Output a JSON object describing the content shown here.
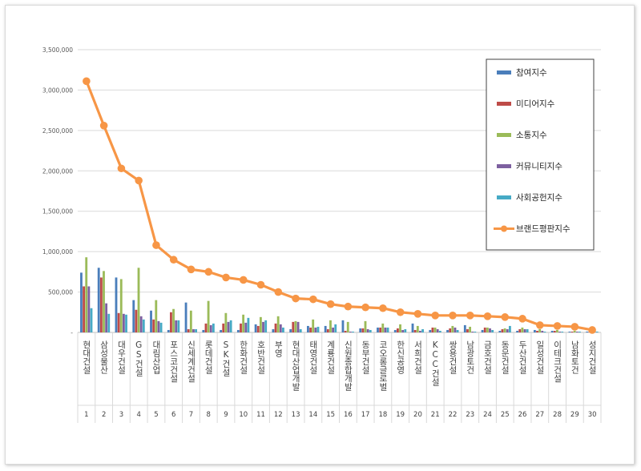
{
  "chart_data": {
    "type": "bar",
    "title": "",
    "xlabel": "",
    "ylabel": "",
    "ylim": [
      0,
      3500000
    ],
    "yticks": [
      0,
      500000,
      1000000,
      1500000,
      2000000,
      2500000,
      3000000,
      3500000
    ],
    "ytick_labels": [
      "-",
      "500,000",
      "1,000,000",
      "1,500,000",
      "2,000,000",
      "2,500,000",
      "3,000,000",
      "3,500,000"
    ],
    "grid": true,
    "legend_position": "top-right",
    "categories": [
      "현대건설",
      "삼성물산",
      "대우건설",
      "GS건설",
      "대림산업",
      "포스코건설",
      "신세계건설",
      "롯데건설",
      "SK건설",
      "한화건설",
      "호반건설",
      "부영",
      "현대산업개발",
      "태영건설",
      "계룡건설",
      "신원종합개발",
      "동부건설",
      "코오롱글로벌",
      "한신공영",
      "서희건설",
      "KCC건설",
      "쌍용건설",
      "남광토건",
      "금호건설",
      "동문건설",
      "두산건설",
      "일성건설",
      "이테크건설",
      "남화토건",
      "성지건설"
    ],
    "ranks": [
      "1",
      "2",
      "3",
      "4",
      "5",
      "6",
      "7",
      "8",
      "9",
      "10",
      "11",
      "12",
      "13",
      "14",
      "15",
      "16",
      "17",
      "18",
      "19",
      "20",
      "21",
      "22",
      "23",
      "24",
      "25",
      "26",
      "27",
      "28",
      "29",
      "30"
    ],
    "series": [
      {
        "name": "참여지수",
        "kind": "bar",
        "color": "#4a7ebb",
        "values": [
          740000,
          800000,
          680000,
          400000,
          270000,
          30000,
          370000,
          30000,
          30000,
          30000,
          100000,
          40000,
          40000,
          80000,
          80000,
          150000,
          50000,
          60000,
          30000,
          110000,
          30000,
          30000,
          90000,
          30000,
          20000,
          20000,
          30000,
          20000,
          10000,
          10000
        ]
      },
      {
        "name": "미디어지수",
        "kind": "bar",
        "color": "#be4b48",
        "values": [
          570000,
          680000,
          240000,
          280000,
          160000,
          250000,
          40000,
          110000,
          110000,
          110000,
          80000,
          110000,
          130000,
          60000,
          40000,
          20000,
          50000,
          60000,
          50000,
          30000,
          60000,
          50000,
          40000,
          60000,
          40000,
          40000,
          20000,
          20000,
          10000,
          10000
        ]
      },
      {
        "name": "소통지수",
        "kind": "bar",
        "color": "#9bbb59",
        "values": [
          930000,
          760000,
          660000,
          800000,
          400000,
          290000,
          270000,
          390000,
          240000,
          220000,
          190000,
          200000,
          140000,
          160000,
          150000,
          130000,
          140000,
          110000,
          100000,
          80000,
          60000,
          80000,
          70000,
          60000,
          50000,
          60000,
          40000,
          30000,
          20000,
          20000
        ]
      },
      {
        "name": "커뮤니티지수",
        "kind": "bar",
        "color": "#7d60a0",
        "values": [
          570000,
          360000,
          230000,
          200000,
          140000,
          150000,
          40000,
          90000,
          130000,
          120000,
          130000,
          100000,
          130000,
          60000,
          60000,
          10000,
          40000,
          60000,
          30000,
          20000,
          40000,
          60000,
          10000,
          50000,
          40000,
          40000,
          20000,
          10000,
          10000,
          10000
        ]
      },
      {
        "name": "사회공헌지수",
        "kind": "bar",
        "color": "#46aac5",
        "values": [
          300000,
          230000,
          220000,
          160000,
          120000,
          150000,
          40000,
          110000,
          150000,
          180000,
          150000,
          60000,
          40000,
          70000,
          100000,
          10000,
          30000,
          60000,
          40000,
          40000,
          20000,
          30000,
          10000,
          30000,
          80000,
          40000,
          10000,
          10000,
          10000,
          10000
        ]
      },
      {
        "name": "브랜드평판지수",
        "kind": "line",
        "color": "#f79646",
        "values": [
          3110000,
          2560000,
          2030000,
          1880000,
          1080000,
          900000,
          780000,
          750000,
          680000,
          650000,
          590000,
          500000,
          420000,
          410000,
          350000,
          320000,
          310000,
          300000,
          250000,
          230000,
          210000,
          210000,
          210000,
          200000,
          190000,
          170000,
          90000,
          80000,
          70000,
          30000
        ]
      }
    ]
  }
}
